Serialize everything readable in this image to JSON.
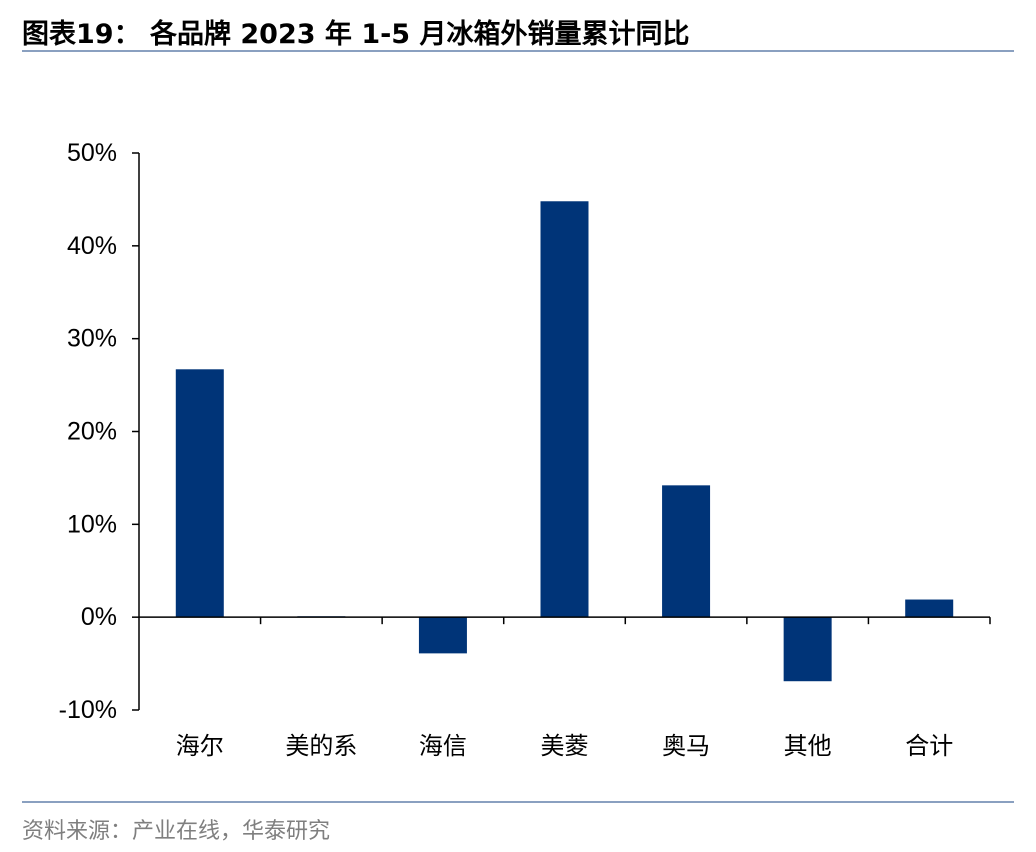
{
  "header": {
    "title": "图表19：  各品牌 2023 年 1-5 月冰箱外销量累计同比"
  },
  "footer": {
    "source": "资料来源：产业在线，华泰研究"
  },
  "colors": {
    "bar": "#003478",
    "axis": "#000000",
    "rule": "#8aa0c0",
    "source_text": "#7f7f7f"
  },
  "chart_data": {
    "type": "bar",
    "title": "",
    "xlabel": "",
    "ylabel": "",
    "categories": [
      "海尔",
      "美的系",
      "海信",
      "美菱",
      "奥马",
      "其他",
      "合计"
    ],
    "values": [
      26.7,
      0.1,
      -3.9,
      44.8,
      14.2,
      -6.9,
      1.9
    ],
    "unit": "%",
    "ylim": [
      -10,
      50
    ],
    "yticks": [
      -10,
      0,
      10,
      20,
      30,
      40,
      50
    ],
    "ytick_labels": [
      "-10%",
      "0%",
      "10%",
      "20%",
      "30%",
      "40%",
      "50%"
    ],
    "grid": false,
    "legend": "none"
  }
}
